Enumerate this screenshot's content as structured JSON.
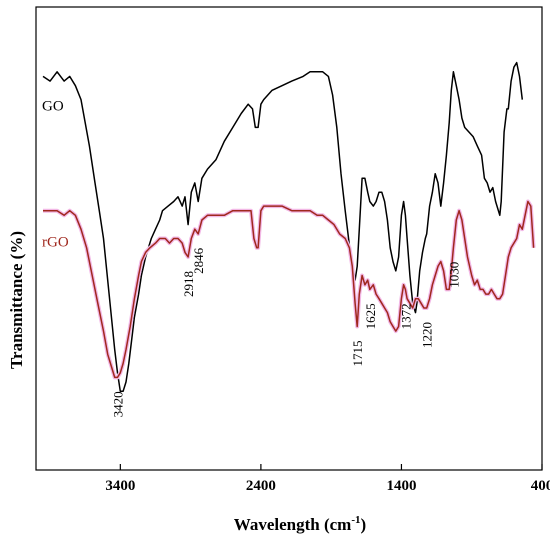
{
  "chart_data": {
    "type": "line",
    "xlabel": "Wavelength (cm",
    "xlabel_sup": "-1",
    "xlabel_close": ")",
    "ylabel": "Transmittance  (%)",
    "x_reversed": true,
    "xlim": [
      4000,
      400
    ],
    "xticks": [
      {
        "value": 3400,
        "label": "3400"
      },
      {
        "value": 2400,
        "label": "2400"
      },
      {
        "value": 1400,
        "label": "1400"
      },
      {
        "value": 400,
        "label": "400"
      }
    ],
    "ylim": [
      0,
      100
    ],
    "y_ticks_shown": false,
    "grid": false,
    "legend": "inline labels",
    "series": [
      {
        "name": "GO",
        "color": "#000000",
        "points": [
          [
            3950,
            85
          ],
          [
            3900,
            84
          ],
          [
            3850,
            86
          ],
          [
            3800,
            84
          ],
          [
            3760,
            85
          ],
          [
            3720,
            83
          ],
          [
            3680,
            80
          ],
          [
            3650,
            75
          ],
          [
            3620,
            70
          ],
          [
            3580,
            62
          ],
          [
            3550,
            56
          ],
          [
            3520,
            50
          ],
          [
            3500,
            44
          ],
          [
            3480,
            38
          ],
          [
            3460,
            32
          ],
          [
            3440,
            26
          ],
          [
            3420,
            21
          ],
          [
            3400,
            17
          ],
          [
            3380,
            17
          ],
          [
            3360,
            19
          ],
          [
            3340,
            23
          ],
          [
            3320,
            28
          ],
          [
            3300,
            33
          ],
          [
            3270,
            38
          ],
          [
            3250,
            42
          ],
          [
            3220,
            46
          ],
          [
            3200,
            48
          ],
          [
            3180,
            50
          ],
          [
            3150,
            52
          ],
          [
            3120,
            54
          ],
          [
            3100,
            56
          ],
          [
            3060,
            57
          ],
          [
            3020,
            58
          ],
          [
            2990,
            59
          ],
          [
            2960,
            57
          ],
          [
            2940,
            59
          ],
          [
            2918,
            53
          ],
          [
            2895,
            60
          ],
          [
            2870,
            62
          ],
          [
            2846,
            58
          ],
          [
            2820,
            63
          ],
          [
            2780,
            65
          ],
          [
            2720,
            67
          ],
          [
            2660,
            71
          ],
          [
            2600,
            74
          ],
          [
            2540,
            77
          ],
          [
            2490,
            79
          ],
          [
            2460,
            78
          ],
          [
            2440,
            74
          ],
          [
            2420,
            74
          ],
          [
            2400,
            79
          ],
          [
            2380,
            80
          ],
          [
            2320,
            82
          ],
          [
            2250,
            83
          ],
          [
            2180,
            84
          ],
          [
            2100,
            85
          ],
          [
            2050,
            86
          ],
          [
            2000,
            86
          ],
          [
            1960,
            86
          ],
          [
            1920,
            85
          ],
          [
            1890,
            81
          ],
          [
            1860,
            74
          ],
          [
            1830,
            64
          ],
          [
            1800,
            56
          ],
          [
            1760,
            46
          ],
          [
            1730,
            41
          ],
          [
            1715,
            44
          ],
          [
            1700,
            52
          ],
          [
            1680,
            63
          ],
          [
            1660,
            63
          ],
          [
            1640,
            60
          ],
          [
            1625,
            58
          ],
          [
            1600,
            57
          ],
          [
            1580,
            58
          ],
          [
            1560,
            60
          ],
          [
            1540,
            60
          ],
          [
            1520,
            58
          ],
          [
            1500,
            54
          ],
          [
            1480,
            48
          ],
          [
            1460,
            45
          ],
          [
            1440,
            43
          ],
          [
            1420,
            46
          ],
          [
            1400,
            55
          ],
          [
            1385,
            58
          ],
          [
            1372,
            55
          ],
          [
            1360,
            50
          ],
          [
            1340,
            42
          ],
          [
            1320,
            36
          ],
          [
            1300,
            34
          ],
          [
            1290,
            36
          ],
          [
            1270,
            43
          ],
          [
            1250,
            47
          ],
          [
            1230,
            50
          ],
          [
            1220,
            51
          ],
          [
            1200,
            57
          ],
          [
            1180,
            60
          ],
          [
            1160,
            64
          ],
          [
            1140,
            62
          ],
          [
            1120,
            57
          ],
          [
            1100,
            62
          ],
          [
            1080,
            68
          ],
          [
            1060,
            75
          ],
          [
            1045,
            82
          ],
          [
            1030,
            86
          ],
          [
            1010,
            83
          ],
          [
            990,
            80
          ],
          [
            970,
            76
          ],
          [
            950,
            74
          ],
          [
            920,
            73
          ],
          [
            890,
            72
          ],
          [
            860,
            70
          ],
          [
            830,
            68
          ],
          [
            810,
            63
          ],
          [
            790,
            62
          ],
          [
            770,
            60
          ],
          [
            750,
            61
          ],
          [
            730,
            58
          ],
          [
            700,
            55
          ],
          [
            690,
            58
          ],
          [
            670,
            73
          ],
          [
            650,
            78
          ],
          [
            640,
            78
          ],
          [
            620,
            84
          ],
          [
            600,
            87
          ],
          [
            580,
            88
          ],
          [
            560,
            85
          ],
          [
            540,
            80
          ]
        ]
      },
      {
        "name": "rGO",
        "color": "#a0281e",
        "points": [
          [
            3950,
            56
          ],
          [
            3900,
            56
          ],
          [
            3850,
            56
          ],
          [
            3800,
            55
          ],
          [
            3760,
            56
          ],
          [
            3720,
            55
          ],
          [
            3680,
            52
          ],
          [
            3640,
            48
          ],
          [
            3600,
            42
          ],
          [
            3560,
            36
          ],
          [
            3520,
            30
          ],
          [
            3490,
            25
          ],
          [
            3460,
            22
          ],
          [
            3440,
            20
          ],
          [
            3420,
            20
          ],
          [
            3400,
            21
          ],
          [
            3380,
            23
          ],
          [
            3360,
            26
          ],
          [
            3330,
            31
          ],
          [
            3300,
            37
          ],
          [
            3270,
            42
          ],
          [
            3250,
            45
          ],
          [
            3220,
            47
          ],
          [
            3190,
            48
          ],
          [
            3150,
            49
          ],
          [
            3120,
            50
          ],
          [
            3080,
            50
          ],
          [
            3050,
            49
          ],
          [
            3020,
            50
          ],
          [
            2990,
            50
          ],
          [
            2960,
            49
          ],
          [
            2940,
            47
          ],
          [
            2918,
            46
          ],
          [
            2895,
            50
          ],
          [
            2870,
            52
          ],
          [
            2846,
            51
          ],
          [
            2820,
            54
          ],
          [
            2780,
            55
          ],
          [
            2720,
            55
          ],
          [
            2660,
            55
          ],
          [
            2600,
            56
          ],
          [
            2540,
            56
          ],
          [
            2500,
            56
          ],
          [
            2470,
            56
          ],
          [
            2450,
            50
          ],
          [
            2430,
            48
          ],
          [
            2420,
            48
          ],
          [
            2410,
            52
          ],
          [
            2400,
            56
          ],
          [
            2380,
            57
          ],
          [
            2320,
            57
          ],
          [
            2250,
            57
          ],
          [
            2180,
            56
          ],
          [
            2100,
            56
          ],
          [
            2050,
            56
          ],
          [
            2000,
            55
          ],
          [
            1960,
            55
          ],
          [
            1920,
            54
          ],
          [
            1880,
            53
          ],
          [
            1840,
            51
          ],
          [
            1800,
            50
          ],
          [
            1770,
            48
          ],
          [
            1750,
            44
          ],
          [
            1730,
            36
          ],
          [
            1715,
            31
          ],
          [
            1700,
            38
          ],
          [
            1680,
            42
          ],
          [
            1660,
            40
          ],
          [
            1640,
            41
          ],
          [
            1625,
            39
          ],
          [
            1600,
            40
          ],
          [
            1580,
            38
          ],
          [
            1560,
            37
          ],
          [
            1540,
            36
          ],
          [
            1520,
            35
          ],
          [
            1500,
            34
          ],
          [
            1480,
            32
          ],
          [
            1460,
            31
          ],
          [
            1440,
            30
          ],
          [
            1420,
            31
          ],
          [
            1400,
            37
          ],
          [
            1385,
            40
          ],
          [
            1372,
            39
          ],
          [
            1360,
            37
          ],
          [
            1340,
            36
          ],
          [
            1320,
            35
          ],
          [
            1300,
            37
          ],
          [
            1280,
            37
          ],
          [
            1260,
            36
          ],
          [
            1240,
            35
          ],
          [
            1220,
            35
          ],
          [
            1200,
            37
          ],
          [
            1180,
            40
          ],
          [
            1160,
            42
          ],
          [
            1140,
            44
          ],
          [
            1120,
            45
          ],
          [
            1100,
            43
          ],
          [
            1080,
            39
          ],
          [
            1060,
            39
          ],
          [
            1045,
            43
          ],
          [
            1030,
            48
          ],
          [
            1010,
            54
          ],
          [
            990,
            56
          ],
          [
            970,
            54
          ],
          [
            950,
            50
          ],
          [
            930,
            46
          ],
          [
            900,
            42
          ],
          [
            880,
            40
          ],
          [
            860,
            41
          ],
          [
            840,
            39
          ],
          [
            820,
            39
          ],
          [
            800,
            38
          ],
          [
            780,
            38
          ],
          [
            760,
            39
          ],
          [
            740,
            38
          ],
          [
            720,
            37
          ],
          [
            700,
            37
          ],
          [
            680,
            38
          ],
          [
            660,
            42
          ],
          [
            640,
            46
          ],
          [
            620,
            48
          ],
          [
            600,
            49
          ],
          [
            580,
            50
          ],
          [
            560,
            53
          ],
          [
            540,
            52
          ],
          [
            520,
            55
          ],
          [
            500,
            58
          ],
          [
            480,
            57
          ],
          [
            460,
            48
          ]
        ]
      }
    ],
    "annotations": [
      {
        "label": "3420",
        "x": 3420
      },
      {
        "label": "2918",
        "x": 2918
      },
      {
        "label": "2846",
        "x": 2846
      },
      {
        "label": "1715",
        "x": 1715
      },
      {
        "label": "1625",
        "x": 1625
      },
      {
        "label": "1372",
        "x": 1372
      },
      {
        "label": "1220",
        "x": 1220
      },
      {
        "label": "1030",
        "x": 1030
      }
    ]
  }
}
